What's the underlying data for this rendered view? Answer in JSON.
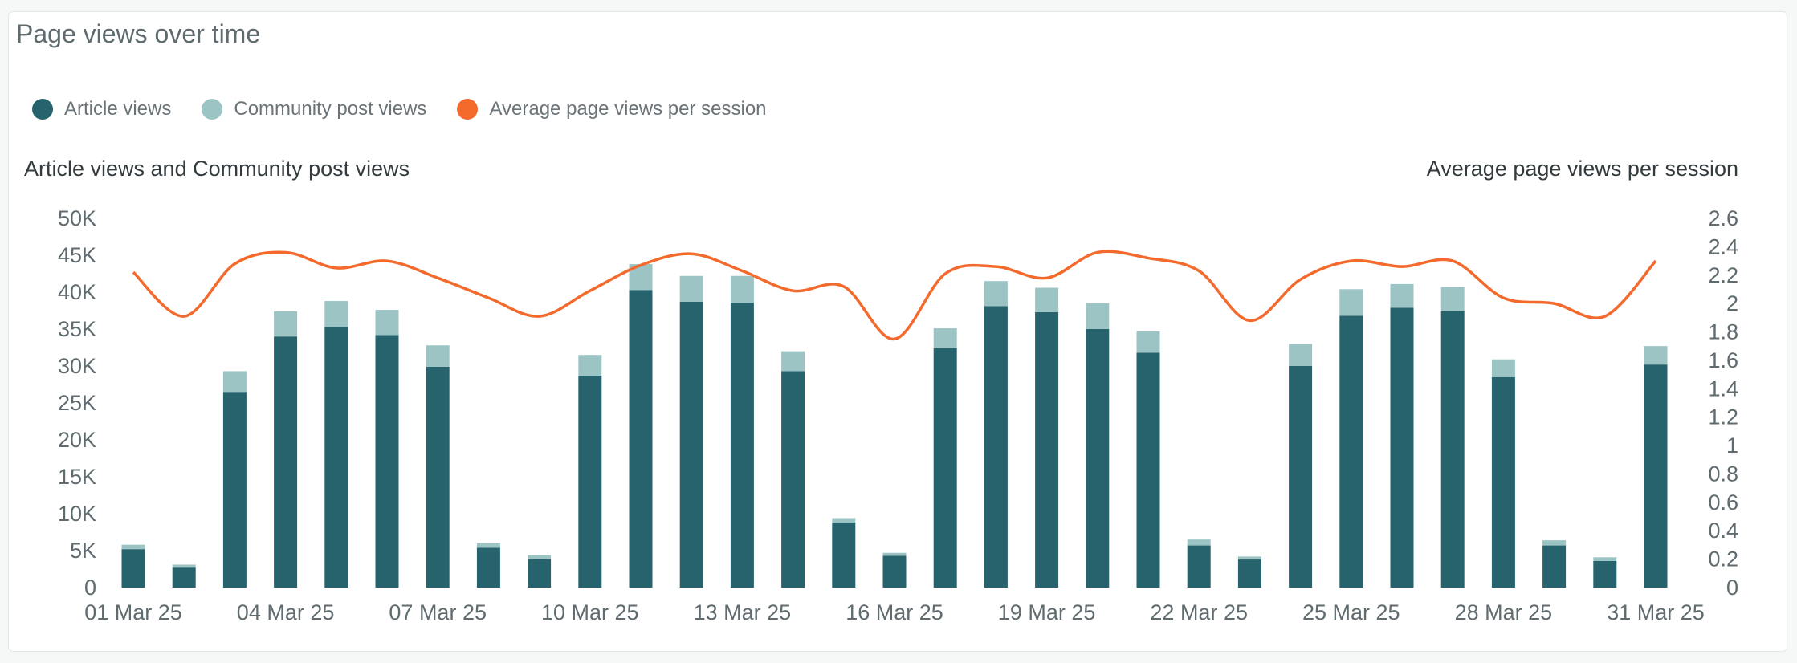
{
  "card": {
    "title": "Page views over time"
  },
  "colors": {
    "article": "#27636d",
    "community": "#9cc4c5",
    "average": "#f36a2c",
    "axis_text": "#5f6b6f",
    "axis_title": "#333b3e"
  },
  "chart_data": {
    "type": "bar",
    "title": "Page views over time",
    "legend_placement": "top-left",
    "grid": false,
    "x_tick_labels": [
      "01 Mar 25",
      "04 Mar 25",
      "07 Mar 25",
      "10 Mar 25",
      "13 Mar 25",
      "16 Mar 25",
      "19 Mar 25",
      "22 Mar 25",
      "25 Mar 25",
      "28 Mar 25",
      "31 Mar 25"
    ],
    "categories": [
      "01 Mar 25",
      "02 Mar 25",
      "03 Mar 25",
      "04 Mar 25",
      "05 Mar 25",
      "06 Mar 25",
      "07 Mar 25",
      "08 Mar 25",
      "09 Mar 25",
      "10 Mar 25",
      "11 Mar 25",
      "12 Mar 25",
      "13 Mar 25",
      "14 Mar 25",
      "15 Mar 25",
      "16 Mar 25",
      "17 Mar 25",
      "18 Mar 25",
      "19 Mar 25",
      "20 Mar 25",
      "21 Mar 25",
      "22 Mar 25",
      "23 Mar 25",
      "24 Mar 25",
      "25 Mar 25",
      "26 Mar 25",
      "27 Mar 25",
      "28 Mar 25",
      "29 Mar 25",
      "30 Mar 25",
      "31 Mar 25"
    ],
    "y_left": {
      "label": "Article views and Community post views",
      "ylim": [
        0,
        50000
      ],
      "ticks": [
        0,
        5000,
        10000,
        15000,
        20000,
        25000,
        30000,
        35000,
        40000,
        45000,
        50000
      ],
      "tick_labels": [
        "0",
        "5K",
        "10K",
        "15K",
        "20K",
        "25K",
        "30K",
        "35K",
        "40K",
        "45K",
        "50K"
      ]
    },
    "y_right": {
      "label": "Average page views per session",
      "ylim": [
        0,
        2.6
      ],
      "ticks": [
        0,
        0.2,
        0.4,
        0.6,
        0.8,
        1,
        1.2,
        1.4,
        1.6,
        1.8,
        2,
        2.2,
        2.4,
        2.6
      ],
      "tick_labels": [
        "0",
        "0.2",
        "0.4",
        "0.6",
        "0.8",
        "1",
        "1.2",
        "1.4",
        "1.6",
        "1.8",
        "2",
        "2.2",
        "2.4",
        "2.6"
      ]
    },
    "series": [
      {
        "name": "Article views",
        "type": "bar",
        "stack": "views",
        "axis": "left",
        "values": [
          5200,
          2700,
          26500,
          34000,
          35300,
          34200,
          29900,
          5400,
          3900,
          28700,
          40300,
          38700,
          38600,
          29300,
          8800,
          4300,
          32400,
          38100,
          37300,
          35000,
          31800,
          5700,
          3800,
          30000,
          36800,
          37900,
          37400,
          28500,
          5700,
          3600,
          30200
        ]
      },
      {
        "name": "Community post views",
        "type": "bar",
        "stack": "views",
        "axis": "left",
        "values": [
          600,
          400,
          2800,
          3400,
          3500,
          3400,
          2900,
          600,
          500,
          2800,
          3500,
          3500,
          3600,
          2700,
          600,
          400,
          2700,
          3400,
          3300,
          3500,
          2900,
          800,
          400,
          3000,
          3600,
          3200,
          3300,
          2400,
          700,
          500,
          2500
        ]
      },
      {
        "name": "Average page views per session",
        "type": "line",
        "axis": "right",
        "values": [
          2.22,
          1.91,
          2.28,
          2.36,
          2.25,
          2.3,
          2.18,
          2.04,
          1.91,
          2.09,
          2.27,
          2.35,
          2.23,
          2.09,
          2.12,
          1.75,
          2.21,
          2.26,
          2.18,
          2.36,
          2.32,
          2.23,
          1.88,
          2.17,
          2.3,
          2.26,
          2.3,
          2.04,
          2.0,
          1.91,
          2.3
        ]
      }
    ]
  }
}
